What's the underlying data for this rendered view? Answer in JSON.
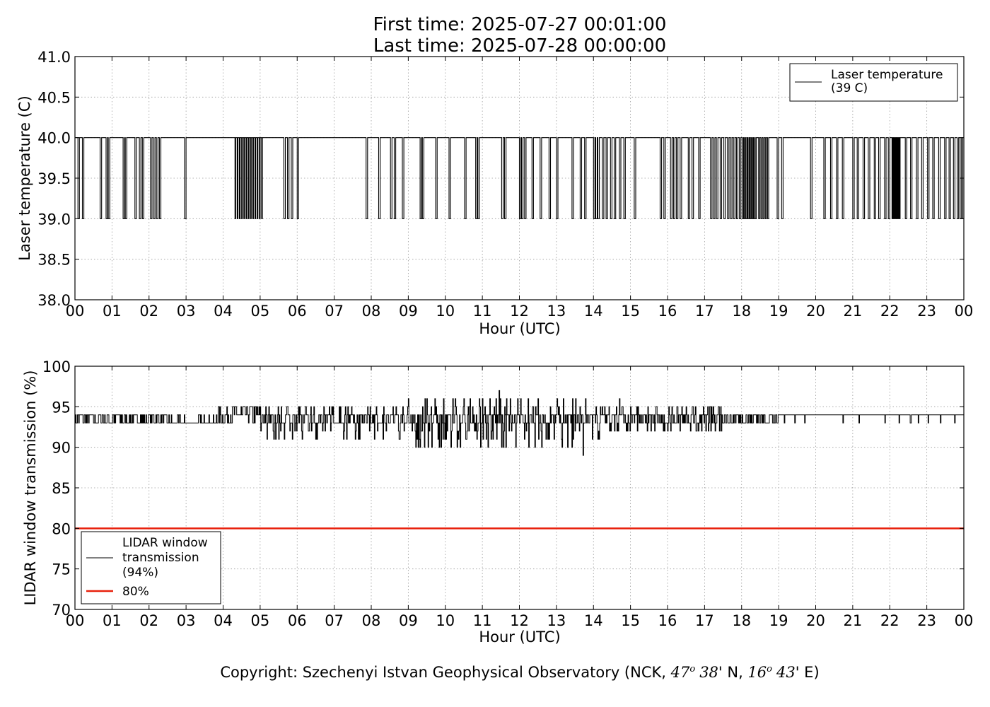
{
  "header": {
    "title_line1": "First time: 2025-07-27 00:01:00",
    "title_line2": "Last time: 2025-07-28 00:00:00"
  },
  "footer": {
    "copyright_prefix": "Copyright: Szechenyi Istvan Geophysical Observatory (NCK, ",
    "lat_deg": "47",
    "lat_deg_sup": "o",
    "lat_min": "38",
    "lat_rest": "' N, ",
    "lon_deg": "16",
    "lon_deg_sup": "o",
    "lon_min": "43",
    "lon_rest": "' E)"
  },
  "colors": {
    "series": "#000000",
    "threshold": "#e8200c",
    "grid": "#9a9a9a"
  },
  "chart_data": [
    {
      "type": "line",
      "ylabel": "Laser temperature (C)",
      "xlabel": "Hour (UTC)",
      "xlim": [
        0,
        24
      ],
      "ylim": [
        38.0,
        41.0
      ],
      "x_tick_labels": [
        "00",
        "01",
        "02",
        "03",
        "04",
        "05",
        "06",
        "07",
        "08",
        "09",
        "10",
        "11",
        "12",
        "13",
        "14",
        "15",
        "16",
        "17",
        "18",
        "19",
        "20",
        "21",
        "22",
        "23",
        "00"
      ],
      "y_ticks": [
        38.0,
        38.5,
        39.0,
        39.5,
        40.0,
        40.5,
        41.0
      ],
      "y_tick_labels": [
        "38.0",
        "38.5",
        "39.0",
        "39.5",
        "40.0",
        "40.5",
        "41.0"
      ],
      "grid": true,
      "legend_position": "top-right",
      "series": [
        {
          "name": "Laser temperature\n(39 C)",
          "legend_lines": [
            "Laser temperature",
            "(39 C)"
          ],
          "color": "#000000",
          "note": "Value toggles between 40.0 and 39.0; listed intervals are the hours where the value is 39.0",
          "baseline": 40.0,
          "alt_value": 39.0,
          "dip_intervals_hours": [
            [
              0.08,
              0.12
            ],
            [
              0.2,
              0.24
            ],
            [
              0.68,
              0.72
            ],
            [
              0.84,
              0.88
            ],
            [
              0.9,
              0.94
            ],
            [
              1.3,
              1.34
            ],
            [
              1.36,
              1.4
            ],
            [
              1.62,
              1.66
            ],
            [
              1.74,
              1.78
            ],
            [
              1.82,
              1.86
            ],
            [
              2.04,
              2.08
            ],
            [
              2.12,
              2.16
            ],
            [
              2.2,
              2.24
            ],
            [
              2.28,
              2.32
            ],
            [
              2.96,
              3.0
            ],
            [
              4.32,
              4.34
            ],
            [
              4.38,
              4.4
            ],
            [
              4.44,
              4.46
            ],
            [
              4.5,
              4.52
            ],
            [
              4.56,
              4.58
            ],
            [
              4.62,
              4.64
            ],
            [
              4.68,
              4.7
            ],
            [
              4.74,
              4.76
            ],
            [
              4.8,
              4.82
            ],
            [
              4.86,
              4.88
            ],
            [
              4.92,
              4.94
            ],
            [
              4.98,
              5.0
            ],
            [
              5.04,
              5.06
            ],
            [
              5.64,
              5.68
            ],
            [
              5.74,
              5.78
            ],
            [
              5.84,
              5.88
            ],
            [
              6.0,
              6.04
            ],
            [
              7.86,
              7.9
            ],
            [
              8.2,
              8.24
            ],
            [
              8.52,
              8.56
            ],
            [
              8.62,
              8.66
            ],
            [
              8.84,
              8.88
            ],
            [
              9.32,
              9.36
            ],
            [
              9.38,
              9.42
            ],
            [
              9.74,
              9.78
            ],
            [
              10.1,
              10.14
            ],
            [
              10.52,
              10.56
            ],
            [
              10.82,
              10.86
            ],
            [
              10.88,
              10.92
            ],
            [
              11.52,
              11.56
            ],
            [
              11.6,
              11.64
            ],
            [
              12.0,
              12.04
            ],
            [
              12.06,
              12.1
            ],
            [
              12.14,
              12.18
            ],
            [
              12.34,
              12.38
            ],
            [
              12.56,
              12.6
            ],
            [
              12.8,
              12.84
            ],
            [
              13.0,
              13.04
            ],
            [
              13.42,
              13.46
            ],
            [
              13.64,
              13.68
            ],
            [
              13.76,
              13.8
            ],
            [
              14.0,
              14.04
            ],
            [
              14.06,
              14.1
            ],
            [
              14.12,
              14.16
            ],
            [
              14.24,
              14.28
            ],
            [
              14.34,
              14.38
            ],
            [
              14.46,
              14.5
            ],
            [
              14.56,
              14.6
            ],
            [
              14.7,
              14.74
            ],
            [
              14.82,
              14.86
            ],
            [
              15.1,
              15.14
            ],
            [
              15.8,
              15.84
            ],
            [
              15.9,
              15.94
            ],
            [
              16.08,
              16.12
            ],
            [
              16.16,
              16.2
            ],
            [
              16.24,
              16.28
            ],
            [
              16.34,
              16.38
            ],
            [
              16.56,
              16.6
            ],
            [
              16.66,
              16.7
            ],
            [
              16.84,
              16.88
            ],
            [
              17.16,
              17.2
            ],
            [
              17.24,
              17.28
            ],
            [
              17.32,
              17.36
            ],
            [
              17.42,
              17.46
            ],
            [
              17.52,
              17.56
            ],
            [
              17.62,
              17.66
            ],
            [
              17.7,
              17.74
            ],
            [
              17.78,
              17.82
            ],
            [
              17.86,
              17.9
            ],
            [
              17.94,
              17.98
            ],
            [
              18.02,
              18.05
            ],
            [
              18.07,
              18.1
            ],
            [
              18.12,
              18.15
            ],
            [
              18.17,
              18.2
            ],
            [
              18.22,
              18.25
            ],
            [
              18.27,
              18.3
            ],
            [
              18.32,
              18.35
            ],
            [
              18.37,
              18.4
            ],
            [
              18.46,
              18.49
            ],
            [
              18.52,
              18.55
            ],
            [
              18.58,
              18.61
            ],
            [
              18.64,
              18.67
            ],
            [
              18.7,
              18.73
            ],
            [
              18.96,
              19.0
            ],
            [
              19.08,
              19.12
            ],
            [
              19.86,
              19.9
            ],
            [
              20.22,
              20.26
            ],
            [
              20.4,
              20.44
            ],
            [
              20.56,
              20.6
            ],
            [
              20.72,
              20.76
            ],
            [
              21.0,
              21.04
            ],
            [
              21.12,
              21.16
            ],
            [
              21.28,
              21.32
            ],
            [
              21.42,
              21.46
            ],
            [
              21.58,
              21.62
            ],
            [
              21.7,
              21.74
            ],
            [
              21.86,
              21.9
            ],
            [
              21.96,
              22.0
            ],
            [
              22.06,
              22.08
            ],
            [
              22.1,
              22.12
            ],
            [
              22.14,
              22.16
            ],
            [
              22.18,
              22.2
            ],
            [
              22.22,
              22.24
            ],
            [
              22.26,
              22.28
            ],
            [
              22.42,
              22.46
            ],
            [
              22.56,
              22.6
            ],
            [
              22.72,
              22.76
            ],
            [
              22.86,
              22.9
            ],
            [
              23.02,
              23.06
            ],
            [
              23.16,
              23.2
            ],
            [
              23.32,
              23.36
            ],
            [
              23.48,
              23.52
            ],
            [
              23.6,
              23.64
            ],
            [
              23.72,
              23.76
            ],
            [
              23.82,
              23.86
            ],
            [
              23.9,
              23.94
            ],
            [
              23.96,
              24.0
            ]
          ]
        }
      ]
    },
    {
      "type": "line",
      "ylabel": "LIDAR window transmission (%)",
      "xlabel": "Hour (UTC)",
      "xlim": [
        0,
        24
      ],
      "ylim": [
        70,
        100
      ],
      "x_tick_labels": [
        "00",
        "01",
        "02",
        "03",
        "04",
        "05",
        "06",
        "07",
        "08",
        "09",
        "10",
        "11",
        "12",
        "13",
        "14",
        "15",
        "16",
        "17",
        "18",
        "19",
        "20",
        "21",
        "22",
        "23",
        "00"
      ],
      "y_ticks": [
        70,
        75,
        80,
        85,
        90,
        95,
        100
      ],
      "y_tick_labels": [
        "70",
        "75",
        "80",
        "85",
        "90",
        "95",
        "100"
      ],
      "grid": true,
      "legend_position": "bottom-left",
      "series": [
        {
          "name": "LIDAR window\ntransmission\n(94%)",
          "legend_lines": [
            "LIDAR window",
            "transmission",
            "(94%)"
          ],
          "color": "#000000",
          "typical_value": 94,
          "segments": [
            {
              "x_range": [
                0.0,
                2.5
              ],
              "values": [
                93,
                94
              ],
              "note": "toggles between 93 and 94"
            },
            {
              "x_range": [
                2.5,
                3.8
              ],
              "values": [
                93,
                94
              ],
              "note": "mostly 93"
            },
            {
              "x_range": [
                3.8,
                5.0
              ],
              "values": [
                93,
                94,
                95
              ],
              "note": "range 93-95"
            },
            {
              "x_range": [
                5.0,
                9.0
              ],
              "values": [
                91,
                92,
                93,
                94,
                95
              ],
              "note": "range 91-95"
            },
            {
              "x_range": [
                9.0,
                14.2
              ],
              "values": [
                90,
                91,
                92,
                93,
                94,
                95,
                96
              ],
              "note": "noisy 90-96, spikes to 97 at 11.45 and 89 at 13.72"
            },
            {
              "x_range": [
                14.2,
                17.5
              ],
              "values": [
                92,
                93,
                94,
                95
              ],
              "note": "range 92-95"
            },
            {
              "x_range": [
                17.5,
                19.0
              ],
              "values": [
                93,
                94
              ],
              "note": "toggles 93-94"
            },
            {
              "x_range": [
                19.0,
                24.0
              ],
              "values": [
                94
              ],
              "note": "mostly 94 with occasional dips to 93"
            }
          ],
          "spikes": [
            {
              "x": 9.45,
              "y": 96
            },
            {
              "x": 11.45,
              "y": 97
            },
            {
              "x": 11.0,
              "y": 96
            },
            {
              "x": 11.9,
              "y": 90
            },
            {
              "x": 12.6,
              "y": 90
            },
            {
              "x": 13.72,
              "y": 89
            },
            {
              "x": 14.7,
              "y": 96
            },
            {
              "x": 6.5,
              "y": 91
            },
            {
              "x": 7.25,
              "y": 91
            }
          ]
        },
        {
          "name": "80%",
          "legend_lines": [
            "80%"
          ],
          "color": "#e8200c",
          "constant_value": 80
        }
      ]
    }
  ]
}
